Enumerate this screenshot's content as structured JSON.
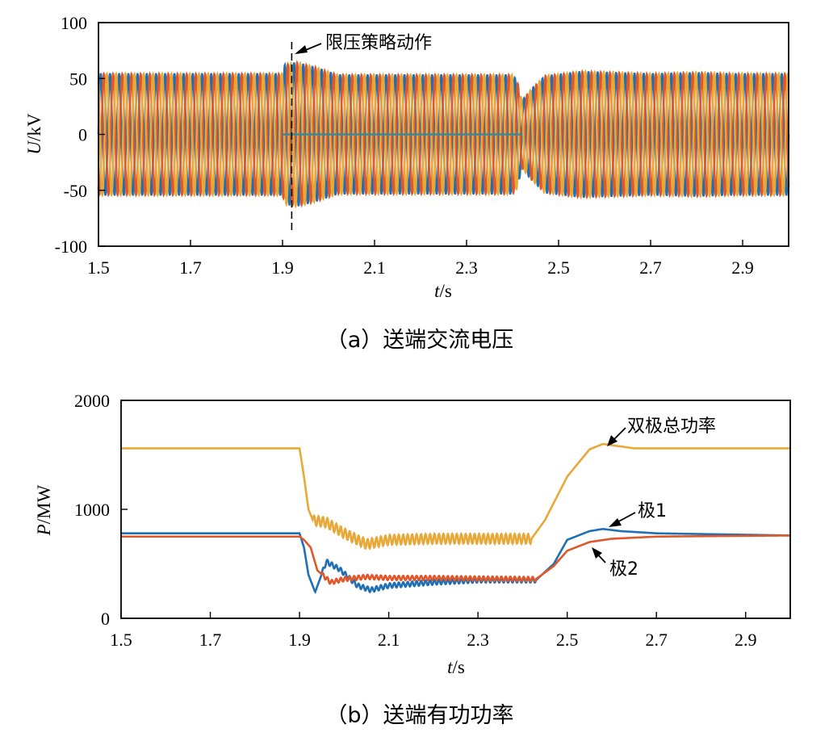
{
  "chart_data": [
    {
      "type": "line",
      "caption": "（a）送端交流电压",
      "ylabel_symbol": "U",
      "ylabel_unit": "/kV",
      "xlabel_symbol": "t",
      "xlabel_unit": "/s",
      "xlim": [
        1.5,
        3.0
      ],
      "ylim": [
        -100,
        100
      ],
      "xticks": [
        "1.5",
        "1.7",
        "1.9",
        "2.1",
        "2.3",
        "2.5",
        "2.7",
        "2.9"
      ],
      "yticks": [
        "100",
        "50",
        "0",
        "-50",
        "-100"
      ],
      "grid": false,
      "waveform": "three-phase sinusoid, 50 Hz",
      "series_colors": [
        "#1f6fb4",
        "#e0572a",
        "#e8a838"
      ],
      "envelope": {
        "x": [
          1.5,
          1.9,
          1.905,
          1.93,
          1.97,
          2.02,
          2.05,
          2.1,
          2.3,
          2.4,
          2.41,
          2.42,
          2.44,
          2.47,
          2.55,
          2.7,
          2.8,
          2.88,
          3.0
        ],
        "amplitude": [
          54,
          54,
          62,
          64,
          60,
          53,
          53,
          53,
          53,
          53,
          48,
          30,
          40,
          52,
          56,
          54,
          55,
          54,
          54
        ]
      },
      "annotation": {
        "text": "限压策略动作",
        "x": 1.92
      },
      "dc_trace": {
        "x_start": 1.9,
        "x_end": 2.42,
        "value": 0
      }
    },
    {
      "type": "line",
      "caption": "（b）送端有功功率",
      "ylabel_symbol": "P",
      "ylabel_unit": "/MW",
      "xlabel_symbol": "t",
      "xlabel_unit": "/s",
      "xlim": [
        1.5,
        3.0
      ],
      "ylim": [
        0,
        2000
      ],
      "xticks": [
        "1.5",
        "1.7",
        "1.9",
        "2.1",
        "2.3",
        "2.5",
        "2.7",
        "2.9"
      ],
      "yticks": [
        "2000",
        "1000",
        "0"
      ],
      "grid": false,
      "series": [
        {
          "name": "双极总功率",
          "color": "#e8a838",
          "x": [
            1.5,
            1.9,
            1.91,
            1.92,
            1.93,
            1.96,
            2.0,
            2.05,
            2.1,
            2.2,
            2.3,
            2.42,
            2.45,
            2.5,
            2.55,
            2.58,
            2.65,
            3.0
          ],
          "y": [
            1560,
            1560,
            1300,
            1000,
            900,
            880,
            780,
            680,
            720,
            730,
            730,
            730,
            900,
            1300,
            1550,
            1600,
            1560,
            1560
          ],
          "ripple": 45,
          "ripple_range": [
            1.93,
            2.42
          ]
        },
        {
          "name": "极1",
          "color": "#1f6fb4",
          "x": [
            1.5,
            1.9,
            1.91,
            1.92,
            1.935,
            1.96,
            1.99,
            2.03,
            2.06,
            2.1,
            2.2,
            2.3,
            2.43,
            2.47,
            2.5,
            2.55,
            2.58,
            2.62,
            2.7,
            3.0
          ],
          "y": [
            780,
            780,
            650,
            400,
            240,
            520,
            450,
            300,
            260,
            300,
            330,
            350,
            350,
            500,
            720,
            800,
            820,
            800,
            780,
            760
          ],
          "ripple": 22,
          "ripple_range": [
            1.95,
            2.43
          ]
        },
        {
          "name": "极2",
          "color": "#e0572a",
          "x": [
            1.5,
            1.9,
            1.91,
            1.925,
            1.94,
            1.97,
            2.0,
            2.05,
            2.1,
            2.2,
            2.3,
            2.43,
            2.47,
            2.5,
            2.55,
            2.6,
            2.7,
            3.0
          ],
          "y": [
            750,
            750,
            720,
            650,
            440,
            330,
            360,
            380,
            370,
            370,
            365,
            360,
            480,
            620,
            700,
            730,
            750,
            760
          ],
          "ripple": 20,
          "ripple_range": [
            1.95,
            2.43
          ]
        }
      ]
    }
  ]
}
